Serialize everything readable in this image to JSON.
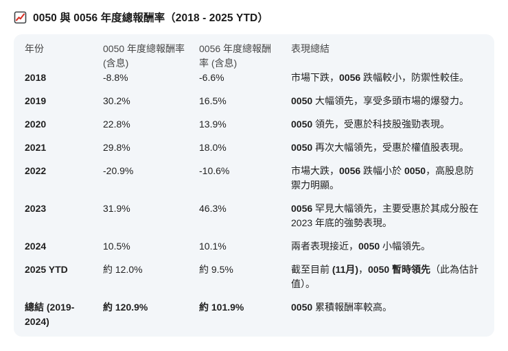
{
  "title": {
    "icon": "chart-trend-icon",
    "text": "0050 與 0056 年度總報酬率（2018 - 2025 YTD）"
  },
  "colors": {
    "accent_red": "#d93025",
    "table_bg": "#f3f6f9",
    "body_text": "#1f1f1f",
    "header_text": "#474747"
  },
  "table": {
    "headers": [
      "年份",
      "0050 年度總報酬率 (含息)",
      "0056 年度總報酬率 (含息)",
      "表現總結"
    ],
    "rows": [
      {
        "year": "2018",
        "r0050": "-8.8%",
        "r0056": "-6.6%",
        "summary": [
          {
            "t": "市場下跌，",
            "b": false
          },
          {
            "t": "0056",
            "b": true
          },
          {
            "t": " 跌幅較小，防禦性較佳。",
            "b": false
          }
        ]
      },
      {
        "year": "2019",
        "r0050": "30.2%",
        "r0056": "16.5%",
        "summary": [
          {
            "t": "0050",
            "b": true
          },
          {
            "t": " 大幅領先，享受多頭市場的爆發力。",
            "b": false
          }
        ]
      },
      {
        "year": "2020",
        "r0050": "22.8%",
        "r0056": "13.9%",
        "summary": [
          {
            "t": "0050",
            "b": true
          },
          {
            "t": " 領先，受惠於科技股強勁表現。",
            "b": false
          }
        ]
      },
      {
        "year": "2021",
        "r0050": "29.8%",
        "r0056": "18.0%",
        "summary": [
          {
            "t": "0050",
            "b": true
          },
          {
            "t": " 再次大幅領先，受惠於權值股表現。",
            "b": false
          }
        ]
      },
      {
        "year": "2022",
        "r0050": "-20.9%",
        "r0056": "-10.6%",
        "summary": [
          {
            "t": "市場大跌，",
            "b": false
          },
          {
            "t": "0056",
            "b": true
          },
          {
            "t": " 跌幅小於 ",
            "b": false
          },
          {
            "t": "0050",
            "b": true
          },
          {
            "t": "，高股息防禦力明顯。",
            "b": false
          }
        ]
      },
      {
        "year": "2023",
        "r0050": "31.9%",
        "r0056": "46.3%",
        "summary": [
          {
            "t": "0056",
            "b": true
          },
          {
            "t": " 罕見大幅領先，主要受惠於其成分股在 2023 年底的強勢表現。",
            "b": false
          }
        ]
      },
      {
        "year": "2024",
        "r0050": "10.5%",
        "r0056": "10.1%",
        "summary": [
          {
            "t": "兩者表現接近，",
            "b": false
          },
          {
            "t": "0050",
            "b": true
          },
          {
            "t": " 小幅領先。",
            "b": false
          }
        ]
      },
      {
        "year": "2025 YTD",
        "r0050": "約 12.0%",
        "r0056": "約 9.5%",
        "summary": [
          {
            "t": "截至目前 ",
            "b": false
          },
          {
            "t": "(11月)",
            "b": true
          },
          {
            "t": "，",
            "b": false
          },
          {
            "t": "0050 暫時領先",
            "b": true
          },
          {
            "t": "（此為估計值）。",
            "b": false
          }
        ]
      },
      {
        "year": "總結 (2019-2024)",
        "r0050": "約 120.9%",
        "r0056": "約 101.9%",
        "values_bold": true,
        "summary": [
          {
            "t": "0050",
            "b": true
          },
          {
            "t": " 累積報酬率較高。",
            "b": false
          }
        ]
      }
    ]
  },
  "chart_data": {
    "type": "table",
    "title": "0050 與 0056 年度總報酬率（2018 - 2025 YTD）",
    "columns": [
      "年份",
      "0050 年度總報酬率 (含息)",
      "0056 年度總報酬率 (含息)",
      "表現總結"
    ],
    "rows": [
      [
        "2018",
        "-8.8%",
        "-6.6%",
        "市場下跌，0056 跌幅較小，防禦性較佳。"
      ],
      [
        "2019",
        "30.2%",
        "16.5%",
        "0050 大幅領先，享受多頭市場的爆發力。"
      ],
      [
        "2020",
        "22.8%",
        "13.9%",
        "0050 領先，受惠於科技股強勁表現。"
      ],
      [
        "2021",
        "29.8%",
        "18.0%",
        "0050 再次大幅領先，受惠於權值股表現。"
      ],
      [
        "2022",
        "-20.9%",
        "-10.6%",
        "市場大跌，0056 跌幅小於 0050，高股息防禦力明顯。"
      ],
      [
        "2023",
        "31.9%",
        "46.3%",
        "0056 罕見大幅領先，主要受惠於其成分股在 2023 年底的強勢表現。"
      ],
      [
        "2024",
        "10.5%",
        "10.1%",
        "兩者表現接近，0050 小幅領先。"
      ],
      [
        "2025 YTD",
        "約 12.0%",
        "約 9.5%",
        "截至目前 (11月)，0050 暫時領先（此為估計值）。"
      ],
      [
        "總結 (2019-2024)",
        "約 120.9%",
        "約 101.9%",
        "0050 累積報酬率較高。"
      ]
    ]
  }
}
